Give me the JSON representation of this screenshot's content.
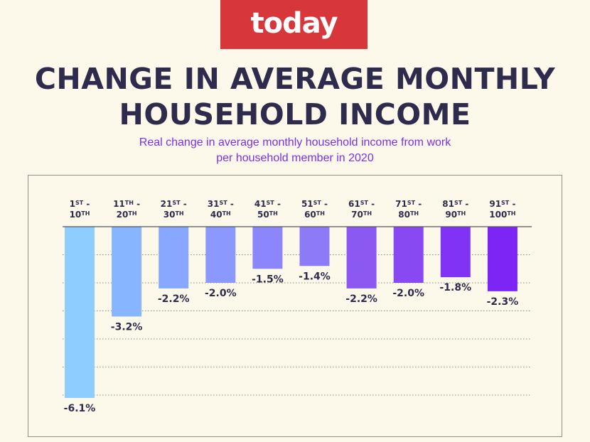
{
  "logo": {
    "text": "today",
    "color": "#d7363b"
  },
  "title": {
    "line1": "CHANGE IN AVERAGE MONTHLY",
    "line2": "HOUSEHOLD INCOME"
  },
  "subtitle": {
    "line1": "Real change in average monthly household income from work",
    "line2": "per household member in 2020"
  },
  "chart_data": {
    "type": "bar",
    "categories": [
      {
        "line1": "1",
        "sup1": "ST",
        "sep1": " -",
        "line2": "10",
        "sup2": "TH"
      },
      {
        "line1": "11",
        "sup1": "TH",
        "sep1": " -",
        "line2": "20",
        "sup2": "TH"
      },
      {
        "line1": "21",
        "sup1": "ST",
        "sep1": " -",
        "line2": "30",
        "sup2": "TH"
      },
      {
        "line1": "31",
        "sup1": "ST",
        "sep1": " -",
        "line2": "40",
        "sup2": "TH"
      },
      {
        "line1": "41",
        "sup1": "ST",
        "sep1": " -",
        "line2": "50",
        "sup2": "TH"
      },
      {
        "line1": "51",
        "sup1": "ST",
        "sep1": " -",
        "line2": "60",
        "sup2": "TH"
      },
      {
        "line1": "61",
        "sup1": "ST",
        "sep1": " -",
        "line2": "70",
        "sup2": "TH"
      },
      {
        "line1": "71",
        "sup1": "ST",
        "sep1": " -",
        "line2": "80",
        "sup2": "TH"
      },
      {
        "line1": "81",
        "sup1": "ST",
        "sep1": " -",
        "line2": "90",
        "sup2": "TH"
      },
      {
        "line1": "91",
        "sup1": "ST",
        "sep1": " -",
        "line2": "100",
        "sup2": "TH"
      }
    ],
    "values": [
      -6.1,
      -3.2,
      -2.2,
      -2.0,
      -1.5,
      -1.4,
      -2.2,
      -2.0,
      -1.8,
      -2.3
    ],
    "value_labels": [
      "-6.1%",
      "-3.2%",
      "-2.2%",
      "-2.0%",
      "-1.5%",
      "-1.4%",
      "-2.2%",
      "-2.0%",
      "-1.8%",
      "-2.3%"
    ],
    "colors": [
      "#8dcdff",
      "#87b5ff",
      "#88a8ff",
      "#8b99ff",
      "#8b86fb",
      "#8d7af7",
      "#8c58f2",
      "#8848f2",
      "#8033f4",
      "#7d25f5"
    ],
    "ylim": [
      -6.1,
      0
    ],
    "grid": "horizontal-dotted",
    "legend": "none",
    "xlabel": "",
    "ylabel": ""
  }
}
